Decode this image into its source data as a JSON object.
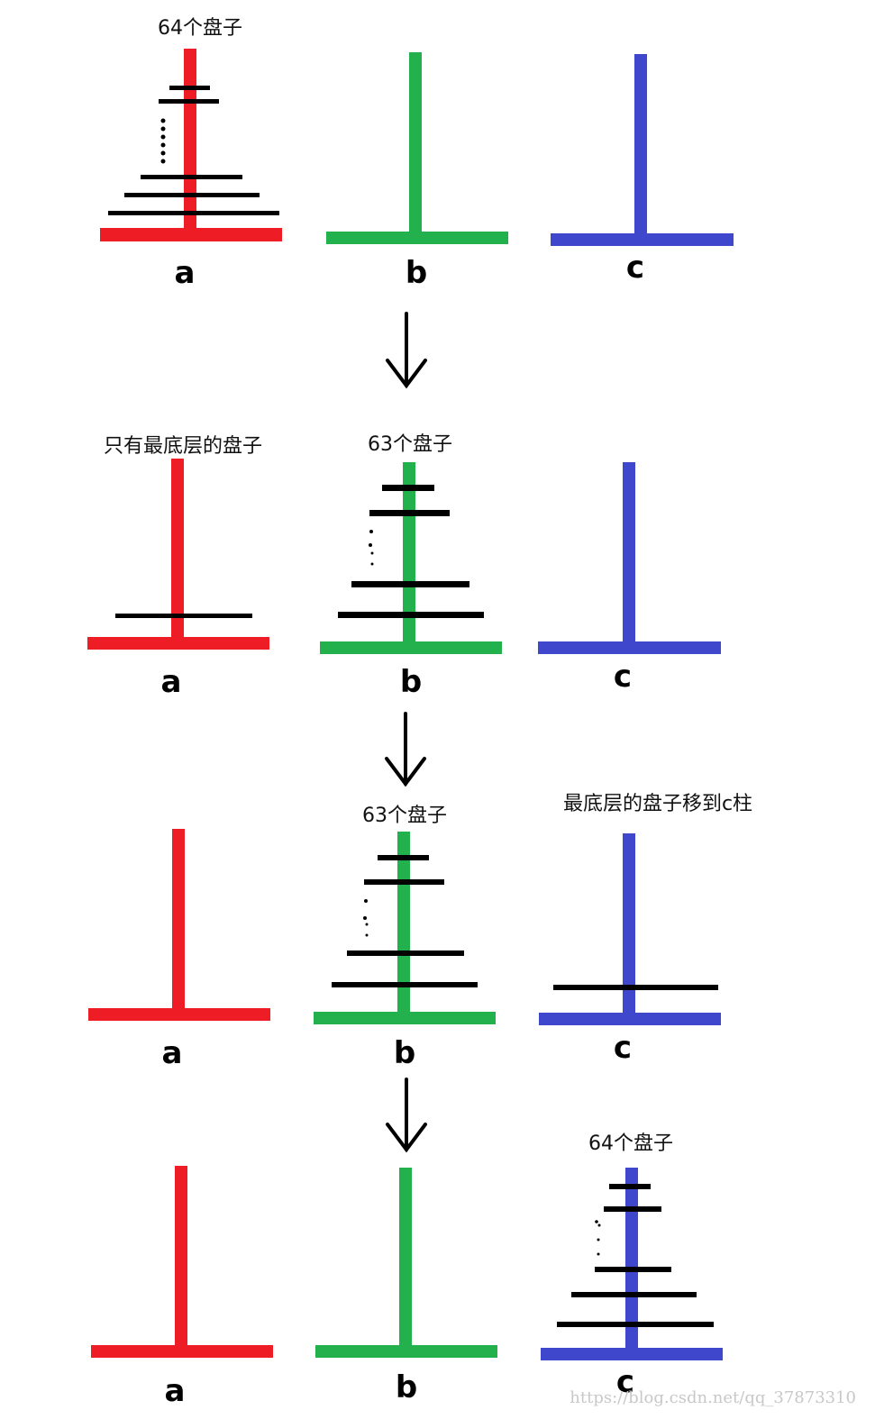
{
  "colors": {
    "pole_a": "#ee1c24",
    "pole_b": "#22b14c",
    "pole_c": "#3f48cc",
    "disk": "#000000",
    "arrow": "#000000"
  },
  "pole_labels": [
    "a",
    "b",
    "c"
  ],
  "stages": [
    {
      "annotations": [
        {
          "pole": "a",
          "text": "64个盘子"
        }
      ],
      "pole_labels": [
        "a",
        "b",
        "c"
      ],
      "disks": {
        "a": "stack",
        "b": "none",
        "c": "none"
      }
    },
    {
      "annotations": [
        {
          "pole": "a",
          "text": "只有最底层的盘子"
        },
        {
          "pole": "b",
          "text": "63个盘子"
        }
      ],
      "pole_labels": [
        "a",
        "b",
        "c"
      ],
      "disks": {
        "a": "single",
        "b": "stack",
        "c": "none"
      }
    },
    {
      "annotations": [
        {
          "pole": "b",
          "text": "63个盘子"
        },
        {
          "pole": "c",
          "text": "最底层的盘子移到c柱"
        }
      ],
      "pole_labels": [
        "a",
        "b",
        "c"
      ],
      "disks": {
        "a": "none",
        "b": "stack",
        "c": "single"
      }
    },
    {
      "annotations": [
        {
          "pole": "c",
          "text": "64个盘子"
        }
      ],
      "pole_labels": [
        "a",
        "b",
        "c"
      ],
      "disks": {
        "a": "none",
        "b": "none",
        "c": "stack"
      }
    }
  ],
  "arrow_icon": "down-arrow-icon",
  "watermark": "https://blog.csdn.net/qq_37873310"
}
